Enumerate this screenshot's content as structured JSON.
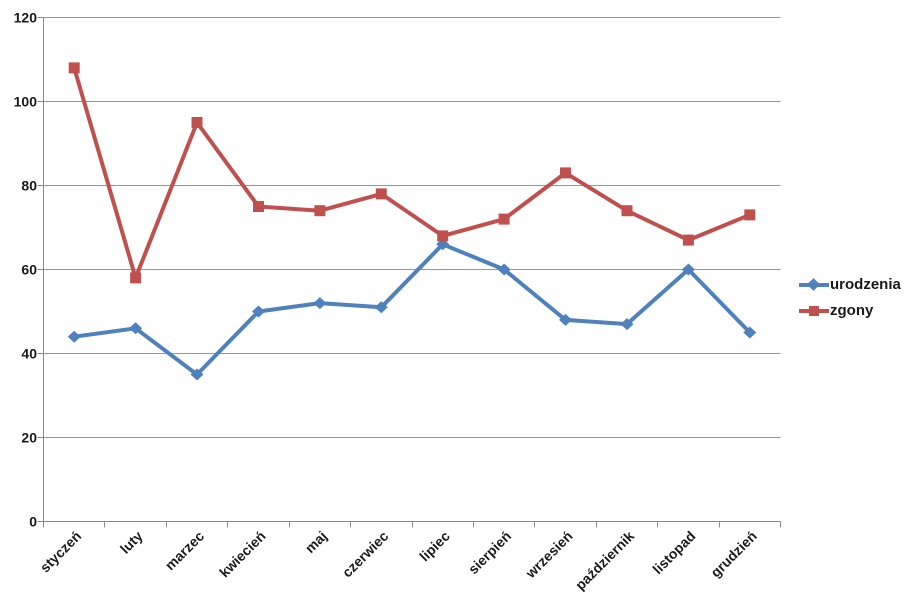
{
  "chart_data": {
    "type": "line",
    "title": "",
    "xlabel": "",
    "ylabel": "",
    "categories": [
      "styczeń",
      "luty",
      "marzec",
      "kwiecień",
      "maj",
      "czerwiec",
      "lipiec",
      "sierpień",
      "wrzesień",
      "październik",
      "listopad",
      "grudzień"
    ],
    "series": [
      {
        "name": "urodzenia",
        "color": "#4F81BD",
        "marker": "diamond",
        "values": [
          44,
          46,
          35,
          50,
          52,
          51,
          66,
          60,
          48,
          47,
          60,
          45
        ]
      },
      {
        "name": "zgony",
        "color": "#C0504D",
        "marker": "square",
        "values": [
          108,
          58,
          95,
          75,
          74,
          78,
          68,
          72,
          83,
          74,
          67,
          73
        ]
      }
    ],
    "ylim": [
      0,
      120
    ],
    "yticks": [
      0,
      20,
      40,
      60,
      80,
      100,
      120
    ],
    "grid": true,
    "legend_position": "right"
  },
  "colors": {
    "background": "#FFFFFF",
    "gridline": "#969696",
    "axis": "#898989",
    "tick_label": "#1a1a1a"
  }
}
